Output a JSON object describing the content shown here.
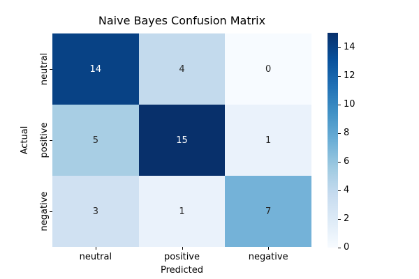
{
  "chart_data": {
    "type": "heatmap",
    "title": "Naive Bayes Confusion Matrix",
    "xlabel": "Predicted",
    "ylabel": "Actual",
    "x_categories": [
      "neutral",
      "positive",
      "negative"
    ],
    "y_categories": [
      "neutral",
      "positive",
      "negative"
    ],
    "values": [
      [
        14,
        4,
        0
      ],
      [
        5,
        15,
        1
      ],
      [
        3,
        1,
        7
      ]
    ],
    "vmin": 0,
    "vmax": 15,
    "colormap": "Blues",
    "grid": false,
    "legend_position": "right-colorbar",
    "cell_colors": [
      [
        "#084285",
        "#c3daed",
        "#f7fbff"
      ],
      [
        "#a8cee4",
        "#08306b",
        "#eaf2fb"
      ],
      [
        "#d0e1f2",
        "#eaf2fb",
        "#74b2d8"
      ]
    ],
    "cell_text_colors": [
      [
        "#ffffff",
        "#262626",
        "#262626"
      ],
      [
        "#262626",
        "#ffffff",
        "#262626"
      ],
      [
        "#262626",
        "#262626",
        "#262626"
      ]
    ],
    "colorbar": {
      "ticks": [
        0,
        2,
        4,
        6,
        8,
        10,
        12,
        14
      ],
      "gradient_top_to_bottom": [
        "#08306b",
        "#08519c",
        "#2171b5",
        "#4292c6",
        "#6baed6",
        "#9ecae1",
        "#c6dbef",
        "#deebf7",
        "#f7fbff"
      ]
    }
  }
}
